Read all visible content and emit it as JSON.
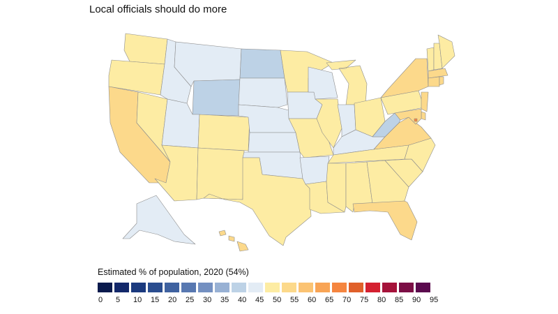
{
  "title": "Local officials should do more",
  "legend": {
    "title": "Estimated % of population, 2020 (54%)",
    "bins": [
      {
        "label": "0",
        "color": "#0a1a4d"
      },
      {
        "label": "5",
        "color": "#13286a"
      },
      {
        "label": "10",
        "color": "#1b3a7e"
      },
      {
        "label": "15",
        "color": "#2a4d8f"
      },
      {
        "label": "20",
        "color": "#3f62a0"
      },
      {
        "label": "25",
        "color": "#5878b1"
      },
      {
        "label": "30",
        "color": "#7490c1"
      },
      {
        "label": "35",
        "color": "#98b1d4"
      },
      {
        "label": "40",
        "color": "#bdd2e6"
      },
      {
        "label": "45",
        "color": "#e3ecf5"
      },
      {
        "label": "50",
        "color": "#fdeca3"
      },
      {
        "label": "55",
        "color": "#fcd98b"
      },
      {
        "label": "60",
        "color": "#fbc373"
      },
      {
        "label": "65",
        "color": "#f8a455"
      },
      {
        "label": "70",
        "color": "#f5853f"
      },
      {
        "label": "75",
        "color": "#e0602a"
      },
      {
        "label": "80",
        "color": "#d42030"
      },
      {
        "label": "85",
        "color": "#a5123a"
      },
      {
        "label": "90",
        "color": "#7b0e45"
      },
      {
        "label": "95",
        "color": "#5b0a4e"
      }
    ]
  },
  "map_data": {
    "type": "choropleth",
    "metric": "Estimated % of population, 2020",
    "national_value": 54,
    "states": {
      "WA": {
        "bin": 50
      },
      "OR": {
        "bin": 50
      },
      "CA": {
        "bin": 55
      },
      "NV": {
        "bin": 50
      },
      "ID": {
        "bin": 45
      },
      "MT": {
        "bin": 45
      },
      "WY": {
        "bin": 40
      },
      "UT": {
        "bin": 45
      },
      "AZ": {
        "bin": 50
      },
      "CO": {
        "bin": 50
      },
      "NM": {
        "bin": 50
      },
      "ND": {
        "bin": 40
      },
      "SD": {
        "bin": 45
      },
      "NE": {
        "bin": 45
      },
      "KS": {
        "bin": 45
      },
      "OK": {
        "bin": 45
      },
      "TX": {
        "bin": 50
      },
      "MN": {
        "bin": 50
      },
      "IA": {
        "bin": 45
      },
      "MO": {
        "bin": 50
      },
      "AR": {
        "bin": 45
      },
      "LA": {
        "bin": 50
      },
      "WI": {
        "bin": 45
      },
      "IL": {
        "bin": 50
      },
      "MI": {
        "bin": 50
      },
      "IN": {
        "bin": 45
      },
      "OH": {
        "bin": 50
      },
      "KY": {
        "bin": 45
      },
      "TN": {
        "bin": 50
      },
      "MS": {
        "bin": 50
      },
      "AL": {
        "bin": 50
      },
      "GA": {
        "bin": 50
      },
      "FL": {
        "bin": 55
      },
      "SC": {
        "bin": 50
      },
      "NC": {
        "bin": 50
      },
      "VA": {
        "bin": 55
      },
      "WV": {
        "bin": 40
      },
      "PA": {
        "bin": 50
      },
      "NY": {
        "bin": 55
      },
      "VT": {
        "bin": 50
      },
      "NH": {
        "bin": 50
      },
      "ME": {
        "bin": 50
      },
      "MA": {
        "bin": 55
      },
      "CT": {
        "bin": 55
      },
      "RI": {
        "bin": 55
      },
      "NJ": {
        "bin": 55
      },
      "DE": {
        "bin": 55
      },
      "MD": {
        "bin": 55
      },
      "DC": {
        "bin": 70
      },
      "AK": {
        "bin": 45
      },
      "HI": {
        "bin": 55
      }
    }
  }
}
